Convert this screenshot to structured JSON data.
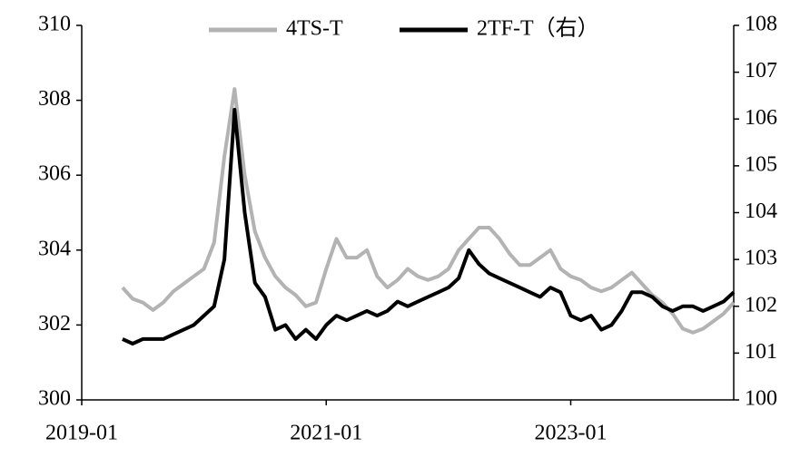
{
  "chart_data": {
    "type": "line",
    "x": [
      "2019-05",
      "2019-06",
      "2019-07",
      "2019-08",
      "2019-09",
      "2019-10",
      "2019-11",
      "2019-12",
      "2020-01",
      "2020-02",
      "2020-03",
      "2020-04",
      "2020-05",
      "2020-06",
      "2020-07",
      "2020-08",
      "2020-09",
      "2020-10",
      "2020-11",
      "2020-12",
      "2021-01",
      "2021-02",
      "2021-03",
      "2021-04",
      "2021-05",
      "2021-06",
      "2021-07",
      "2021-08",
      "2021-09",
      "2021-10",
      "2021-11",
      "2021-12",
      "2022-01",
      "2022-02",
      "2022-03",
      "2022-04",
      "2022-05",
      "2022-06",
      "2022-07",
      "2022-08",
      "2022-09",
      "2022-10",
      "2022-11",
      "2022-12",
      "2023-01",
      "2023-02",
      "2023-03",
      "2023-04",
      "2023-05",
      "2023-06",
      "2023-07",
      "2023-08",
      "2023-09",
      "2023-10",
      "2023-11",
      "2023-12",
      "2024-01",
      "2024-02",
      "2024-03",
      "2024-04",
      "2024-05"
    ],
    "series": [
      {
        "name": "4TS-T",
        "color": "#b3b3b3",
        "values": [
          303.0,
          302.7,
          302.6,
          302.4,
          302.6,
          302.9,
          303.1,
          303.3,
          303.5,
          304.2,
          306.5,
          308.3,
          306.0,
          304.5,
          303.8,
          303.3,
          303.0,
          302.8,
          302.5,
          302.6,
          303.5,
          304.3,
          303.8,
          303.8,
          304.0,
          303.3,
          303.0,
          303.2,
          303.5,
          303.3,
          303.2,
          303.3,
          303.5,
          304.0,
          304.3,
          304.6,
          304.6,
          304.3,
          303.9,
          303.6,
          303.6,
          303.8,
          304.0,
          303.5,
          303.3,
          303.2,
          303.0,
          302.9,
          303.0,
          303.2,
          303.4,
          303.1,
          302.8,
          302.6,
          302.3,
          301.9,
          301.8,
          301.9,
          302.1,
          302.3,
          302.6
        ]
      },
      {
        "name": "2TF-T（右）",
        "color": "#000000",
        "axis": "y2",
        "values": [
          101.3,
          101.2,
          101.3,
          101.3,
          101.3,
          101.4,
          101.5,
          101.6,
          101.8,
          102.0,
          103.0,
          106.2,
          104.0,
          102.5,
          102.2,
          101.5,
          101.6,
          101.3,
          101.5,
          101.3,
          101.6,
          101.8,
          101.7,
          101.8,
          101.9,
          101.8,
          101.9,
          102.1,
          102.0,
          102.1,
          102.2,
          102.3,
          102.4,
          102.6,
          103.2,
          102.9,
          102.7,
          102.6,
          102.5,
          102.4,
          102.3,
          102.2,
          102.4,
          102.3,
          101.8,
          101.7,
          101.8,
          101.5,
          101.6,
          101.9,
          102.3,
          102.3,
          102.2,
          102.0,
          101.9,
          102.0,
          102.0,
          101.9,
          102.0,
          102.1,
          102.3
        ]
      }
    ],
    "xlim": [
      "2019-01",
      "2024-05"
    ],
    "xticks": [
      "2019-01",
      "2021-01",
      "2023-01"
    ],
    "ylim": [
      300,
      310
    ],
    "yticks": [
      300,
      302,
      304,
      306,
      308,
      310
    ],
    "y2lim": [
      100,
      108
    ],
    "y2ticks": [
      100,
      101,
      102,
      103,
      104,
      105,
      106,
      107,
      108
    ],
    "legend": "top"
  }
}
